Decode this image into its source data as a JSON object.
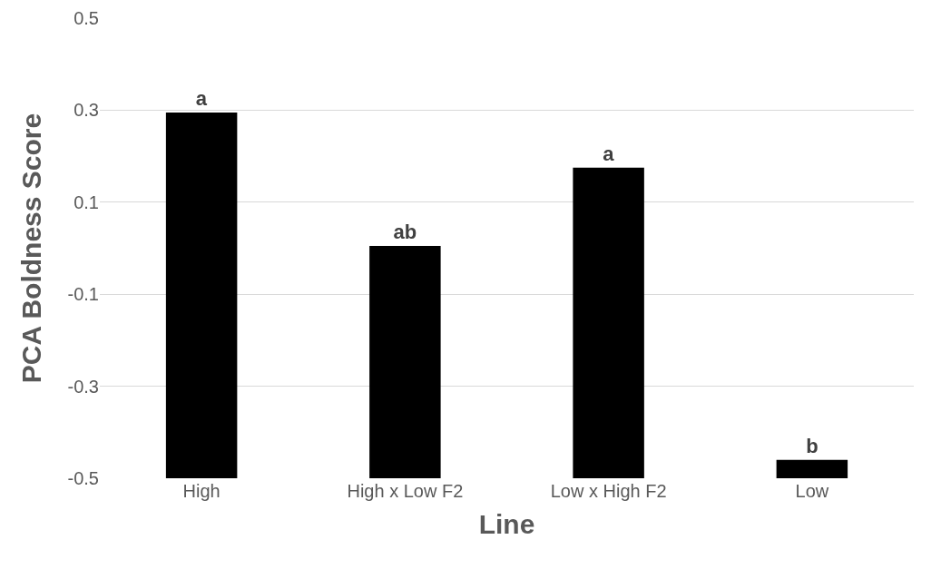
{
  "chart_data": {
    "type": "bar",
    "xlabel": "Line",
    "ylabel": "PCA Boldness Score",
    "categories": [
      "High",
      "High x Low F2",
      "Low x High F2",
      "Low"
    ],
    "values": [
      0.795,
      0.505,
      0.675,
      0.04
    ],
    "base": [
      -0.5,
      -0.5,
      -0.5,
      -0.5
    ],
    "color": "#000000",
    "value_labels": [
      "a",
      "ab",
      "a",
      "b"
    ],
    "ylim": [
      -0.5,
      0.5
    ],
    "yticks": [
      -0.5,
      -0.3,
      -0.1,
      0.1,
      0.3,
      0.5
    ],
    "grid": "y",
    "legend": false
  }
}
